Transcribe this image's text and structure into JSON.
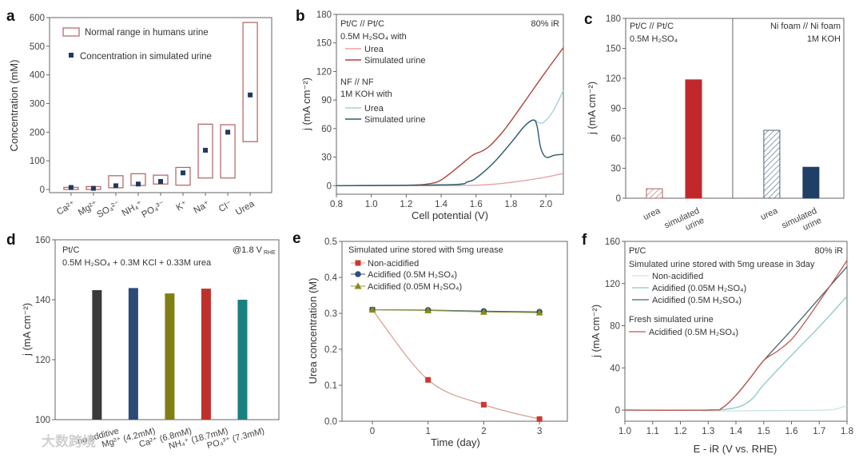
{
  "chart_data": [
    {
      "panel": "a",
      "type": "scatter",
      "ylabel": "Concentration (mM)",
      "ylim": [
        -11,
        600
      ],
      "yticks": [
        "0",
        "100",
        "200",
        "300",
        "400",
        "500",
        "600"
      ],
      "categories": [
        "Ca²⁺",
        "Mg²⁺",
        "SO₄²⁻",
        "NH₄⁺",
        "PO₄³⁻",
        "K⁺",
        "Na⁺",
        "Cl⁻",
        "Urea"
      ],
      "range_low": [
        0,
        0,
        6,
        14,
        19,
        15,
        40,
        40,
        167
      ],
      "range_high": [
        7.5,
        10,
        48,
        55,
        50,
        77,
        228,
        226,
        583
      ],
      "simulated": [
        7,
        4,
        13,
        19,
        28,
        58,
        137,
        200,
        330
      ],
      "legend": [
        "Normal range in humans urine",
        "Concentration in simulated urine"
      ],
      "colors": {
        "range": "#b06060",
        "point": "#1f3a5f"
      }
    },
    {
      "panel": "b",
      "type": "line",
      "xlabel": "Cell potential (V)",
      "ylabel": "j (mA cm⁻²)",
      "xlim": [
        0.8,
        2.1
      ],
      "ylim": [
        -9,
        180
      ],
      "xticks": [
        "0.8",
        "1.0",
        "1.2",
        "1.4",
        "1.6",
        "1.8",
        "2.0"
      ],
      "yticks": [
        "0",
        "30",
        "60",
        "90",
        "120",
        "150",
        "180"
      ],
      "annotation": "80% iR",
      "groups": [
        {
          "title": [
            "Pt/C // Pt/C",
            "0.5M H₂SO₄ with"
          ]
        },
        {
          "title": [
            "NF // NF",
            "1M KOH with"
          ]
        }
      ],
      "series": [
        {
          "name": "Urea",
          "group": 0,
          "color": "#e8a4a4",
          "points": [
            [
              0.8,
              0
            ],
            [
              1.4,
              0
            ],
            [
              1.6,
              0.5
            ],
            [
              1.7,
              1.5
            ],
            [
              1.8,
              3.5
            ],
            [
              1.9,
              6
            ],
            [
              2.0,
              9
            ],
            [
              2.1,
              13
            ]
          ]
        },
        {
          "name": "Simulated urine",
          "group": 0,
          "color": "#b0443c",
          "points": [
            [
              0.8,
              0
            ],
            [
              1.2,
              0.5
            ],
            [
              1.33,
              2
            ],
            [
              1.4,
              6
            ],
            [
              1.5,
              20
            ],
            [
              1.58,
              32
            ],
            [
              1.63,
              36
            ],
            [
              1.68,
              42
            ],
            [
              1.75,
              56
            ],
            [
              1.8,
              68
            ],
            [
              1.9,
              94
            ],
            [
              2.0,
              120
            ],
            [
              2.1,
              145
            ]
          ]
        },
        {
          "name": "Urea",
          "group": 1,
          "color": "#a8d0d8",
          "points": [
            [
              0.8,
              0
            ],
            [
              1.45,
              1
            ],
            [
              1.55,
              4
            ],
            [
              1.6,
              8
            ],
            [
              1.7,
              24
            ],
            [
              1.8,
              45
            ],
            [
              1.88,
              63
            ],
            [
              1.93,
              69
            ],
            [
              1.96,
              66
            ],
            [
              1.99,
              67
            ],
            [
              2.04,
              78
            ],
            [
              2.1,
              100
            ]
          ]
        },
        {
          "name": "Simulated urine",
          "group": 1,
          "color": "#2e5a70",
          "points": [
            [
              0.8,
              0
            ],
            [
              1.45,
              1
            ],
            [
              1.55,
              4
            ],
            [
              1.6,
              8
            ],
            [
              1.7,
              24
            ],
            [
              1.8,
              45
            ],
            [
              1.88,
              63
            ],
            [
              1.93,
              69
            ],
            [
              1.95,
              62
            ],
            [
              1.97,
              40
            ],
            [
              2.0,
              30
            ],
            [
              2.05,
              32
            ],
            [
              2.1,
              33
            ]
          ]
        }
      ]
    },
    {
      "panel": "c",
      "type": "bar",
      "ylabel": "j (mA cm⁻²)",
      "ylim": [
        0,
        180
      ],
      "yticks": [
        "0",
        "30",
        "60",
        "90",
        "120",
        "150",
        "180"
      ],
      "left_title": [
        "Pt/C // Pt/C",
        "0.5M H₂SO₄"
      ],
      "right_title": [
        "Ni foam // Ni foam",
        "1M KOH"
      ],
      "categories": [
        [
          "urea"
        ],
        [
          "simulated",
          "urine"
        ],
        [
          "urea"
        ],
        [
          "simulated",
          "urine"
        ]
      ],
      "values": [
        9.5,
        118.5,
        68,
        31
      ],
      "styles": [
        "hatch-red",
        "#c0282a",
        "hatch-blue",
        "#1f3f66"
      ]
    },
    {
      "panel": "d",
      "type": "bar",
      "ylabel": "j (mA cm⁻²)",
      "ylim": [
        100,
        160
      ],
      "yticks": [
        "100",
        "120",
        "140",
        "160"
      ],
      "title": [
        "Pt/C",
        "0.5M H₂SO₄ + 0.3M KCl + 0.33M urea"
      ],
      "annotation": [
        "@1.8 V",
        "RHE"
      ],
      "categories": [
        "no additive",
        "Mg²⁺ (4.2mM)",
        "Ca²⁺ (6.8mM)",
        "NH₄⁺ (18.7mM)",
        "PO₄³⁺ (7.3mM)"
      ],
      "values": [
        143.2,
        143.9,
        142.1,
        143.7,
        140.0
      ],
      "colors": [
        "#3a3a3a",
        "#2b4a78",
        "#7f7f14",
        "#c0302a",
        "#1a8080"
      ]
    },
    {
      "panel": "e",
      "type": "line",
      "title": "Simulated urine stored with 5mg urease",
      "xlabel": "Time (day)",
      "ylabel": "Urea concentration (M)",
      "xlim": [
        -0.545,
        3.5
      ],
      "ylim": [
        0,
        0.5
      ],
      "xticks": [
        "0",
        "1",
        "2",
        "3"
      ],
      "yticks": [
        "0.0",
        "0.1",
        "0.2",
        "0.3",
        "0.4",
        "0.5"
      ],
      "x": [
        0,
        1,
        2,
        3
      ],
      "series": [
        {
          "name": "Non-acidified",
          "marker": "square",
          "color": "#c83a32",
          "line": "#d49a8a",
          "values": [
            0.31,
            0.115,
            0.046,
            0.006
          ]
        },
        {
          "name": "Acidified (0.5M H₂SO₄)",
          "marker": "circle",
          "color": "#2e4e80",
          "line": "#3e5a4a",
          "values": [
            0.31,
            0.309,
            0.306,
            0.304
          ]
        },
        {
          "name": "Acidified (0.05M H₂SO₄)",
          "marker": "triangle",
          "color": "#8a8a10",
          "line": "#8a9a50",
          "values": [
            0.31,
            0.308,
            0.304,
            0.302
          ]
        }
      ]
    },
    {
      "panel": "f",
      "type": "line",
      "xlabel": "E - iR (V vs. RHE)",
      "ylabel": "j (mA cm⁻²)",
      "xlim": [
        1.0,
        1.8
      ],
      "ylim": [
        -10.6,
        160
      ],
      "xticks": [
        "1.0",
        "1.1",
        "1.2",
        "1.3",
        "1.4",
        "1.5",
        "1.6",
        "1.7",
        "1.8"
      ],
      "yticks": [
        "0",
        "40",
        "80",
        "120",
        "160"
      ],
      "label_top_left": "Pt/C",
      "annotation": "80% iR",
      "groups": [
        {
          "title": "Simulated urine stored with 5mg urease in 3day"
        },
        {
          "title": "Fresh simulated urine"
        }
      ],
      "series": [
        {
          "name": "Non-acidified",
          "group": 0,
          "color": "#cfe3e8",
          "points": [
            [
              1.28,
              -1
            ],
            [
              1.5,
              -0.5
            ],
            [
              1.7,
              -0.2
            ],
            [
              1.75,
              0.5
            ],
            [
              1.8,
              4
            ]
          ]
        },
        {
          "name": "Acidified (0.05M H₂SO₄)",
          "group": 0,
          "color": "#8cc7c4",
          "points": [
            [
              1.0,
              0
            ],
            [
              1.3,
              0
            ],
            [
              1.37,
              1
            ],
            [
              1.42,
              4
            ],
            [
              1.46,
              11
            ],
            [
              1.5,
              24
            ],
            [
              1.6,
              52
            ],
            [
              1.7,
              79
            ],
            [
              1.8,
              108
            ]
          ]
        },
        {
          "name": "Acidified (0.5M H₂SO₄)",
          "group": 0,
          "color": "#4a6470",
          "points": [
            [
              1.0,
              0
            ],
            [
              1.3,
              0
            ],
            [
              1.35,
              2
            ],
            [
              1.4,
              14
            ],
            [
              1.45,
              30
            ],
            [
              1.5,
              47
            ],
            [
              1.6,
              76
            ],
            [
              1.7,
              106
            ],
            [
              1.8,
              136
            ]
          ]
        },
        {
          "name": "Acidified (0.5M H₂SO₄)",
          "group": 1,
          "color": "#c0584e",
          "points": [
            [
              1.0,
              0
            ],
            [
              1.3,
              0
            ],
            [
              1.35,
              2
            ],
            [
              1.4,
              14
            ],
            [
              1.45,
              30
            ],
            [
              1.5,
              47
            ],
            [
              1.55,
              56
            ],
            [
              1.6,
              67
            ],
            [
              1.65,
              84
            ],
            [
              1.7,
              103
            ],
            [
              1.75,
              122
            ],
            [
              1.8,
              142
            ]
          ]
        }
      ]
    }
  ],
  "watermark": "大数跨境"
}
